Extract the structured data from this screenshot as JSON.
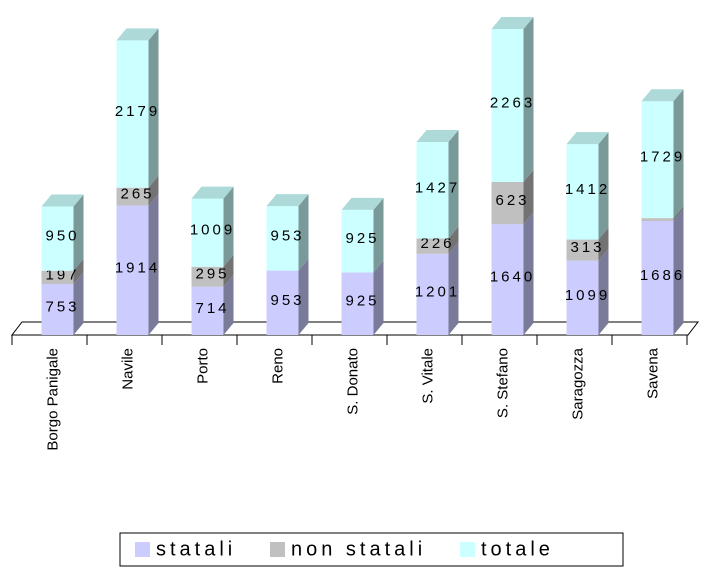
{
  "chart_data": {
    "type": "bar3d_stacked",
    "categories": [
      "Borgo Panigale",
      "Navile",
      "Porto",
      "Reno",
      "S. Donato",
      "S. Vitale",
      "S. Stefano",
      "Saragozza",
      "Savena"
    ],
    "series": [
      {
        "name": "statali",
        "color": "#ccccff",
        "values": [
          753,
          1914,
          714,
          953,
          925,
          1201,
          1640,
          1099,
          1686
        ]
      },
      {
        "name": "non statali",
        "color": "#c0c0c0",
        "values": [
          197,
          265,
          295,
          0,
          0,
          226,
          623,
          313,
          43
        ]
      },
      {
        "name": "totale",
        "color": "#ccffff",
        "values": [
          950,
          2179,
          1009,
          953,
          925,
          1427,
          2263,
          1412,
          1729
        ]
      }
    ],
    "legend": "bottom"
  }
}
